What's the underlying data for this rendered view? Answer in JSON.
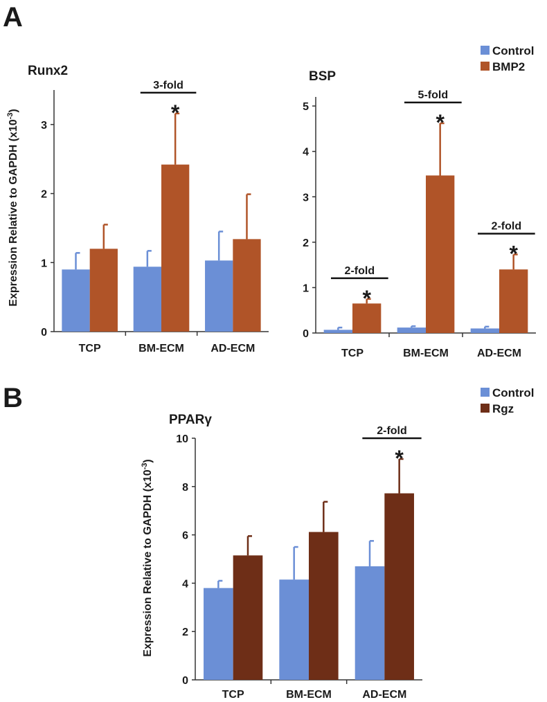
{
  "figure": {
    "panel_A_label": "A",
    "panel_B_label": "B",
    "y_axis_label": "Expression Relative to GAPDH (x10",
    "y_axis_exponent": "-3",
    "y_axis_close": ")",
    "legend_A": [
      {
        "label": "Control",
        "color": "#6b8fd6"
      },
      {
        "label": "BMP2",
        "color": "#b05428"
      }
    ],
    "legend_B": [
      {
        "label": "Control",
        "color": "#6b8fd6"
      },
      {
        "label": "Rgz",
        "color": "#6e2e17"
      }
    ]
  },
  "chart_data": [
    {
      "id": "runx2",
      "type": "bar",
      "title": "Runx2",
      "categories": [
        "TCP",
        "BM-ECM",
        "AD-ECM"
      ],
      "ylim": [
        0,
        3.5
      ],
      "yticks": [
        0,
        1,
        2,
        3
      ],
      "series": [
        {
          "name": "Control",
          "color": "#6b8fd6",
          "values": [
            0.9,
            0.94,
            1.03
          ],
          "errors": [
            0.24,
            0.23,
            0.42
          ]
        },
        {
          "name": "BMP2",
          "color": "#b05428",
          "values": [
            1.2,
            2.42,
            1.34
          ],
          "errors": [
            0.35,
            0.74,
            0.65
          ]
        }
      ],
      "annotations": [
        {
          "category": 1,
          "label": "3-fold",
          "star": "*"
        }
      ]
    },
    {
      "id": "bsp",
      "type": "bar",
      "title": "BSP",
      "categories": [
        "TCP",
        "BM-ECM",
        "AD-ECM"
      ],
      "ylim": [
        0,
        5.2
      ],
      "yticks": [
        0,
        1,
        2,
        3,
        4,
        5
      ],
      "series": [
        {
          "name": "Control",
          "color": "#6b8fd6",
          "values": [
            0.07,
            0.12,
            0.1
          ],
          "errors": [
            0.05,
            0.03,
            0.04
          ]
        },
        {
          "name": "BMP2",
          "color": "#b05428",
          "values": [
            0.65,
            3.47,
            1.4
          ],
          "errors": [
            0.1,
            1.15,
            0.33
          ]
        }
      ],
      "annotations": [
        {
          "category": 0,
          "label": "2-fold",
          "star": "*"
        },
        {
          "category": 1,
          "label": "5-fold",
          "star": "*"
        },
        {
          "category": 2,
          "label": "2-fold",
          "star": "*"
        }
      ]
    },
    {
      "id": "ppar",
      "type": "bar",
      "title": "PPARγ",
      "categories": [
        "TCP",
        "BM-ECM",
        "AD-ECM"
      ],
      "ylim": [
        0,
        10
      ],
      "yticks": [
        0,
        2,
        4,
        6,
        8,
        10
      ],
      "series": [
        {
          "name": "Control",
          "color": "#6b8fd6",
          "values": [
            3.8,
            4.15,
            4.7
          ],
          "errors": [
            0.3,
            1.35,
            1.05
          ]
        },
        {
          "name": "Rgz",
          "color": "#6e2e17",
          "values": [
            5.15,
            6.12,
            7.72
          ],
          "errors": [
            0.8,
            1.25,
            1.42
          ]
        }
      ],
      "annotations": [
        {
          "category": 2,
          "label": "2-fold",
          "star": "*"
        }
      ]
    }
  ]
}
